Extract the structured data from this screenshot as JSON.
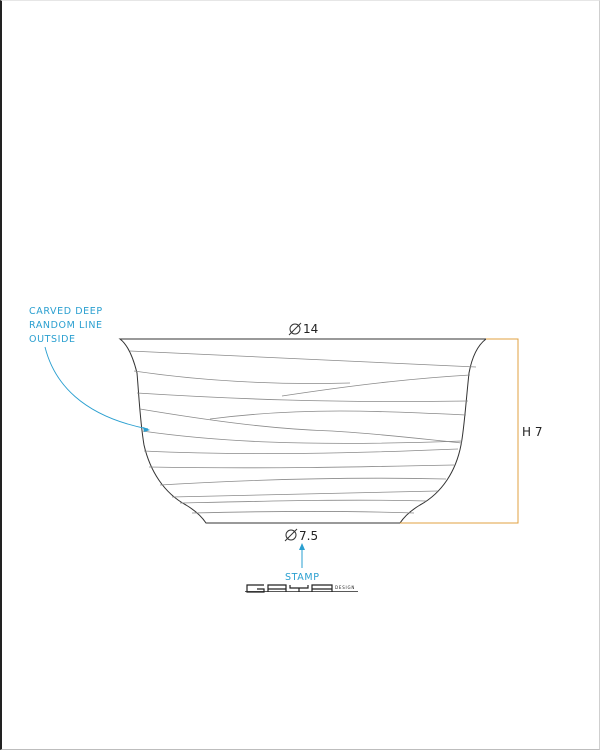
{
  "drawing": {
    "note_lines": [
      "CARVED DEEP",
      "RANDOM LINE",
      "OUTSIDE"
    ],
    "top_diameter": "14",
    "bottom_diameter": "7.5",
    "height": "H 7",
    "stamp_label": "STAMP",
    "logo_text": "GAYA",
    "logo_subtext": "DESIGN"
  },
  "colors": {
    "annotation": "#2a9fd0",
    "dimension": "#e0a040",
    "outline": "#333333",
    "carve": "#8a8a8a"
  }
}
